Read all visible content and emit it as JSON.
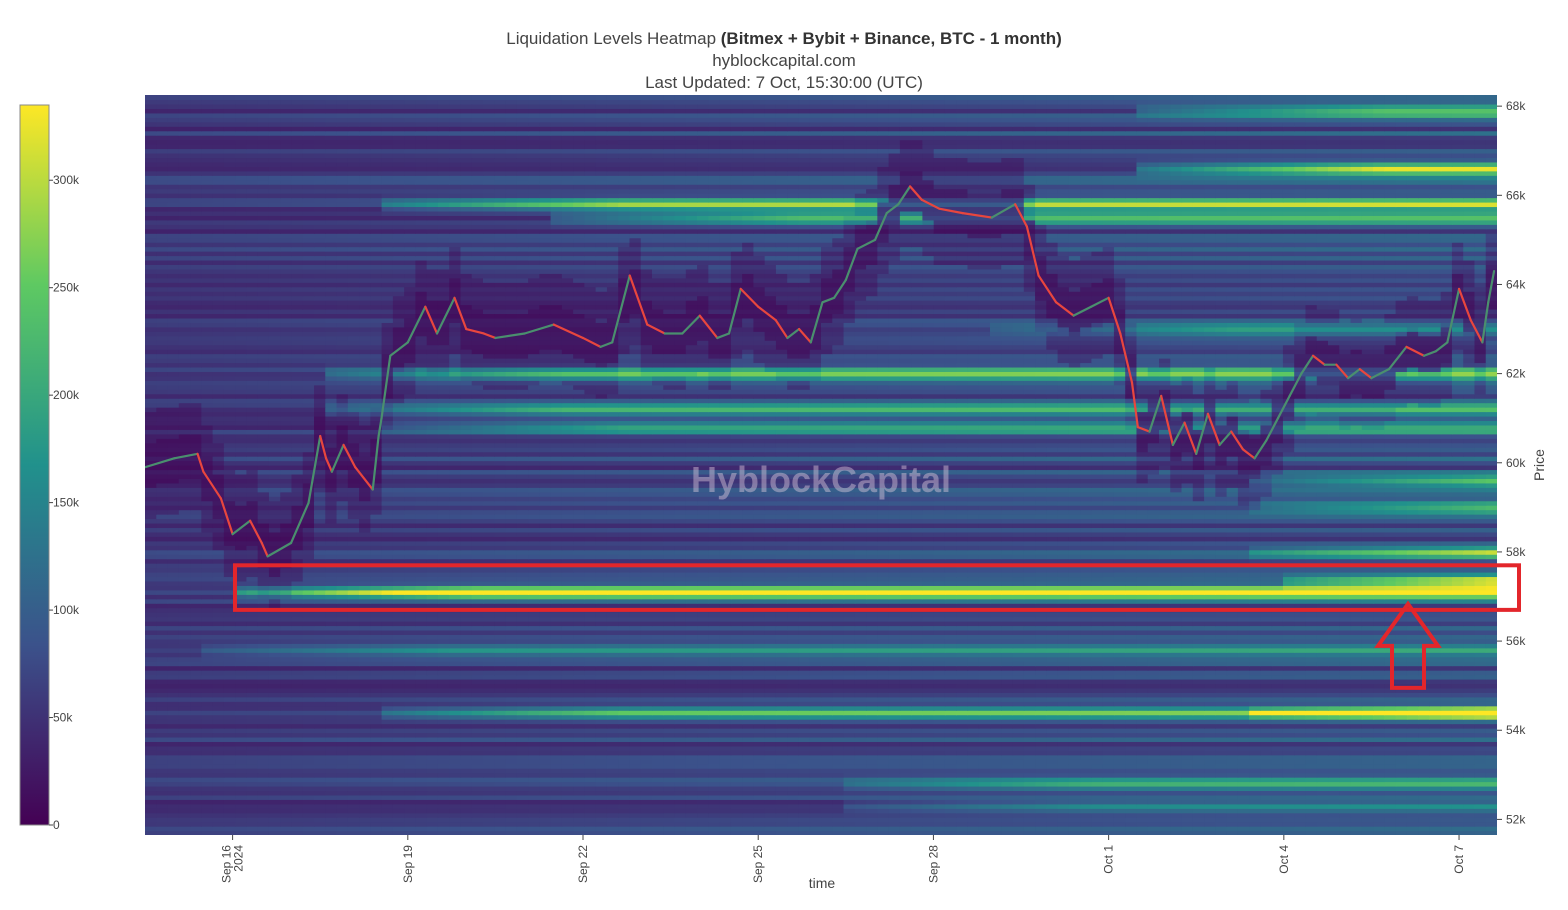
{
  "title": {
    "main_prefix": "Liquidation Levels Heatmap ",
    "main_bold": "(Bitmex + Bybit + Binance, BTC - 1 month)",
    "subtitle": "hyblockcapital.com",
    "updated": "Last Updated: 7 Oct, 15:30:00 (UTC)"
  },
  "watermark": "HyblockCapital",
  "colors": {
    "price_up": "#4a8f6e",
    "price_down": "#e8463e",
    "highlight": "#e3262b",
    "colorscale": [
      "#440154",
      "#3b528b",
      "#21918c",
      "#5ec962",
      "#fde725"
    ]
  },
  "annotation": {
    "highlight_band": [
      56.7,
      57.7
    ],
    "arrow": "up-arrow"
  },
  "chart_data": {
    "type": "heatmap",
    "xlabel": "time",
    "ylabel": "Price",
    "x_ticks": [
      "Sep 16\n2024",
      "Sep 19",
      "Sep 22",
      "Sep 25",
      "Sep 28",
      "Oct 1",
      "Oct 4",
      "Oct 7"
    ],
    "x_tick_positions": [
      1.5,
      4.5,
      7.5,
      10.5,
      13.5,
      16.5,
      19.5,
      22.5
    ],
    "xlim": [
      0,
      23.15
    ],
    "y_ticks": [
      "52k",
      "54k",
      "56k",
      "58k",
      "60k",
      "62k",
      "64k",
      "66k",
      "68k"
    ],
    "y_tick_values": [
      52,
      54,
      56,
      58,
      60,
      62,
      64,
      66,
      68
    ],
    "ylim": [
      51.65,
      68.25
    ],
    "colorbar": {
      "ticks": [
        "0",
        "50k",
        "100k",
        "150k",
        "200k",
        "250k",
        "300k"
      ],
      "tick_values": [
        0,
        50000,
        100000,
        150000,
        200000,
        250000,
        300000
      ],
      "range": [
        0,
        335000
      ]
    },
    "liquidation_bands": [
      {
        "price": 57.1,
        "start": 1.5,
        "intensity": 1.0
      },
      {
        "price": 57.35,
        "start": 19.5,
        "intensity": 0.75
      },
      {
        "price": 66.6,
        "start": 17.0,
        "intensity": 0.8
      },
      {
        "price": 67.9,
        "start": 17.0,
        "intensity": 0.55
      },
      {
        "price": 65.8,
        "start": 4.0,
        "intensity": 0.6
      },
      {
        "price": 65.5,
        "start": 7.0,
        "intensity": 0.55
      },
      {
        "price": 62.0,
        "start": 3.0,
        "intensity": 0.6
      },
      {
        "price": 61.2,
        "start": 3.0,
        "intensity": 0.5
      },
      {
        "price": 60.8,
        "start": 4.0,
        "intensity": 0.45
      },
      {
        "price": 59.6,
        "start": 19.0,
        "intensity": 0.55
      },
      {
        "price": 59.0,
        "start": 19.0,
        "intensity": 0.45
      },
      {
        "price": 58.0,
        "start": 19.0,
        "intensity": 0.55
      },
      {
        "price": 54.4,
        "start": 4.0,
        "intensity": 0.5
      },
      {
        "price": 54.4,
        "start": 19.0,
        "intensity": 0.65
      },
      {
        "price": 55.8,
        "start": 1.0,
        "intensity": 0.3
      },
      {
        "price": 52.8,
        "start": 12.0,
        "intensity": 0.35
      },
      {
        "price": 52.3,
        "start": 12.0,
        "intensity": 0.3
      },
      {
        "price": 63.0,
        "start": 14.5,
        "intensity": 0.35
      }
    ],
    "series": [
      {
        "name": "BTC price",
        "x": [
          0.0,
          0.5,
          0.9,
          1.0,
          1.3,
          1.5,
          1.8,
          2.0,
          2.1,
          2.5,
          2.8,
          3.0,
          3.1,
          3.2,
          3.4,
          3.6,
          3.9,
          4.0,
          4.05,
          4.2,
          4.5,
          4.8,
          5.0,
          5.3,
          5.5,
          5.8,
          6.0,
          6.5,
          7.0,
          7.5,
          7.8,
          8.0,
          8.3,
          8.6,
          8.9,
          9.2,
          9.5,
          9.8,
          10.0,
          10.2,
          10.5,
          10.8,
          11.0,
          11.2,
          11.4,
          11.6,
          11.8,
          12.0,
          12.2,
          12.5,
          12.7,
          12.9,
          13.1,
          13.3,
          13.6,
          14.0,
          14.5,
          14.9,
          15.1,
          15.3,
          15.6,
          15.9,
          16.2,
          16.5,
          16.7,
          16.9,
          17.0,
          17.2,
          17.4,
          17.6,
          17.8,
          18.0,
          18.2,
          18.4,
          18.6,
          18.8,
          19.0,
          19.2,
          19.4,
          19.6,
          19.8,
          20.0,
          20.2,
          20.4,
          20.6,
          20.8,
          21.0,
          21.3,
          21.6,
          21.9,
          22.1,
          22.3,
          22.5,
          22.7,
          22.9,
          23.0,
          23.1
        ],
        "y": [
          59.9,
          60.1,
          60.2,
          59.8,
          59.2,
          58.4,
          58.7,
          58.2,
          57.9,
          58.2,
          59.1,
          60.6,
          60.1,
          59.8,
          60.4,
          59.9,
          59.4,
          60.6,
          61.0,
          62.4,
          62.7,
          63.5,
          62.9,
          63.7,
          63.0,
          62.9,
          62.8,
          62.9,
          63.1,
          62.8,
          62.6,
          62.7,
          64.2,
          63.1,
          62.9,
          62.9,
          63.3,
          62.8,
          62.9,
          63.9,
          63.5,
          63.2,
          62.8,
          63.0,
          62.7,
          63.6,
          63.7,
          64.1,
          64.8,
          65.0,
          65.6,
          65.8,
          66.2,
          65.9,
          65.7,
          65.6,
          65.5,
          65.8,
          65.3,
          64.2,
          63.6,
          63.3,
          63.5,
          63.7,
          62.9,
          61.8,
          60.8,
          60.7,
          61.5,
          60.4,
          60.9,
          60.2,
          61.1,
          60.4,
          60.7,
          60.3,
          60.1,
          60.5,
          61.0,
          61.5,
          62.0,
          62.4,
          62.2,
          62.2,
          61.9,
          62.1,
          61.9,
          62.1,
          62.6,
          62.4,
          62.5,
          62.7,
          63.9,
          63.2,
          62.7,
          63.6,
          64.3
        ]
      }
    ]
  }
}
